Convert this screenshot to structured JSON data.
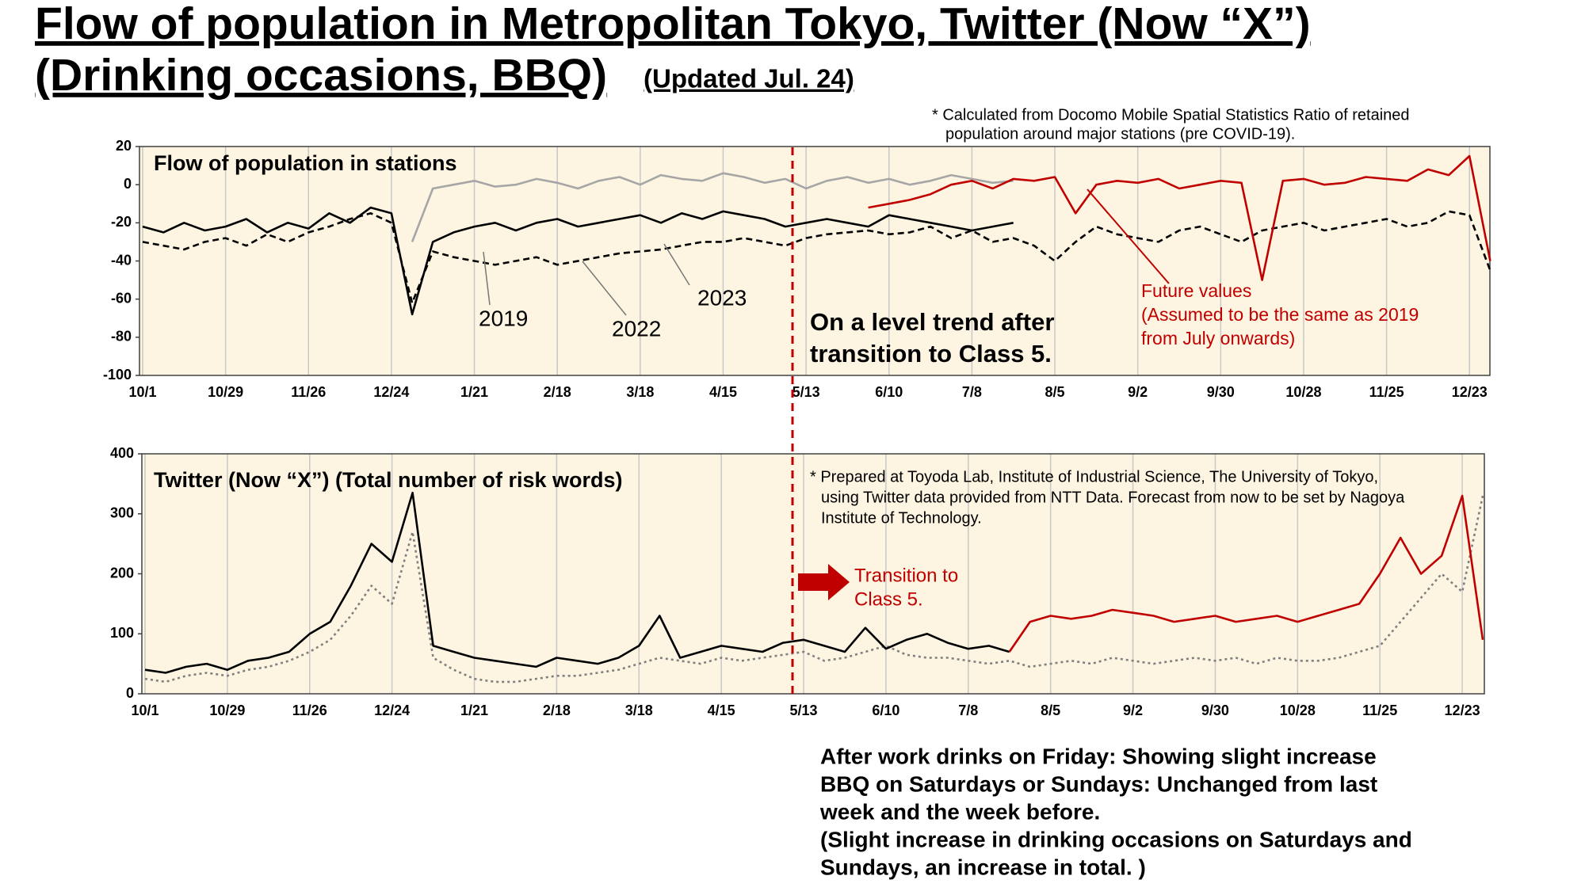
{
  "header": {
    "title_lines": [
      "Flow of population in Metropolitan Tokyo, Twitter (Now “X”)",
      "(Drinking occasions, BBQ)"
    ],
    "updated": "(Updated Jul. 24)",
    "note": [
      "* Calculated from Docomo Mobile Spatial Statistics   Ratio of retained",
      "population around major stations (pre COVID-19)."
    ]
  },
  "chart_data": [
    {
      "type": "line",
      "title": "Flow of population in stations",
      "annotation": [
        "On a level trend after",
        "transition to Class 5."
      ],
      "background": "#fdf5e1",
      "grid": true,
      "categories": [
        "10/1",
        null,
        null,
        null,
        "10/29",
        null,
        null,
        null,
        "11/26",
        null,
        null,
        null,
        "12/24",
        null,
        null,
        null,
        "1/21",
        null,
        null,
        null,
        "2/18",
        null,
        null,
        null,
        "3/18",
        null,
        null,
        null,
        "4/15",
        null,
        null,
        null,
        "5/13",
        null,
        null,
        null,
        "6/10",
        null,
        null,
        null,
        "7/8",
        null,
        null,
        null,
        "8/5",
        null,
        null,
        null,
        "9/2",
        null,
        null,
        null,
        "9/30",
        null,
        null,
        null,
        "10/28",
        null,
        null,
        null,
        "11/25",
        null,
        null,
        null,
        "12/23",
        null
      ],
      "ylim": [
        -100,
        20
      ],
      "yticks": [
        20,
        0,
        -20,
        -40,
        -60,
        -80,
        -100
      ],
      "series": [
        {
          "name": "2019",
          "color": "#a6a6a6",
          "values": [
            null,
            null,
            null,
            null,
            null,
            null,
            null,
            null,
            null,
            null,
            null,
            null,
            null,
            -30,
            -2,
            0,
            2,
            -1,
            0,
            3,
            1,
            -2,
            2,
            4,
            0,
            5,
            3,
            2,
            6,
            4,
            1,
            3,
            -2,
            2,
            4,
            1,
            3,
            0,
            2,
            5,
            3,
            1,
            2,
            null,
            null,
            null,
            null,
            null,
            null,
            null,
            null,
            null,
            null,
            null,
            null,
            null,
            null,
            null,
            null,
            null,
            null,
            null,
            null,
            null,
            null,
            null
          ]
        },
        {
          "name": "2022",
          "color": "#000000",
          "dash": "dashed",
          "values": [
            -30,
            -32,
            -34,
            -30,
            -28,
            -32,
            -26,
            -30,
            -25,
            -22,
            -18,
            -15,
            -20,
            -62,
            -35,
            -38,
            -40,
            -42,
            -40,
            -38,
            -42,
            -40,
            -38,
            -36,
            -35,
            -34,
            -32,
            -30,
            -30,
            -28,
            -30,
            -32,
            -28,
            -26,
            -25,
            -24,
            -26,
            -25,
            -22,
            -28,
            -24,
            -30,
            -28,
            -32,
            -40,
            -30,
            -22,
            -26,
            -28,
            -30,
            -24,
            -22,
            -26,
            -30,
            -24,
            -22,
            -20,
            -24,
            -22,
            -20,
            -18,
            -22,
            -20,
            -14,
            -16,
            -45
          ]
        },
        {
          "name": "2023",
          "color": "#000000",
          "values": [
            -22,
            -25,
            -20,
            -24,
            -22,
            -18,
            -25,
            -20,
            -23,
            -15,
            -20,
            -12,
            -15,
            -68,
            -30,
            -25,
            -22,
            -20,
            -24,
            -20,
            -18,
            -22,
            -20,
            -18,
            -16,
            -20,
            -15,
            -18,
            -14,
            -16,
            -18,
            -22,
            -20,
            -18,
            -20,
            -22,
            -16,
            -18,
            -20,
            -22,
            -24,
            -22,
            -20,
            null,
            null,
            null,
            null,
            null,
            null,
            null,
            null,
            null,
            null,
            null,
            null,
            null,
            null,
            null,
            null,
            null,
            null,
            null,
            null,
            null,
            null,
            null
          ]
        },
        {
          "name": "Future values",
          "note": [
            "(Assumed to be the same as 2019",
            "from July onwards)"
          ],
          "color": "#c00000",
          "values": [
            null,
            null,
            null,
            null,
            null,
            null,
            null,
            null,
            null,
            null,
            null,
            null,
            null,
            null,
            null,
            null,
            null,
            null,
            null,
            null,
            null,
            null,
            null,
            null,
            null,
            null,
            null,
            null,
            null,
            null,
            null,
            null,
            null,
            null,
            null,
            -12,
            -10,
            -8,
            -5,
            0,
            2,
            -2,
            3,
            2,
            4,
            -15,
            0,
            2,
            1,
            3,
            -2,
            0,
            2,
            1,
            -50,
            2,
            3,
            0,
            1,
            4,
            3,
            2,
            8,
            5,
            15,
            -40
          ]
        }
      ]
    },
    {
      "type": "line",
      "title": "Twitter (Now “X”) (Total number of risk words)",
      "note": [
        "* Prepared at Toyoda Lab, Institute of Industrial Science, The University of Tokyo,",
        "using Twitter data provided from NTT Data. Forecast from now to be set by Nagoya",
        "Institute of Technology."
      ],
      "annotation": [
        "Transition to",
        "Class 5."
      ],
      "background": "#fdf5e1",
      "grid": true,
      "categories": [
        "10/1",
        null,
        null,
        null,
        "10/29",
        null,
        null,
        null,
        "11/26",
        null,
        null,
        null,
        "12/24",
        null,
        null,
        null,
        "1/21",
        null,
        null,
        null,
        "2/18",
        null,
        null,
        null,
        "3/18",
        null,
        null,
        null,
        "4/15",
        null,
        null,
        null,
        "5/13",
        null,
        null,
        null,
        "6/10",
        null,
        null,
        null,
        "7/8",
        null,
        null,
        null,
        "8/5",
        null,
        null,
        null,
        "9/2",
        null,
        null,
        null,
        "9/30",
        null,
        null,
        null,
        "10/28",
        null,
        null,
        null,
        "11/25",
        null,
        null,
        null,
        "12/23",
        null
      ],
      "ylim": [
        0,
        400
      ],
      "yticks": [
        0,
        100,
        200,
        300,
        400
      ],
      "series": [
        {
          "color": "#808080",
          "dash": "dotted",
          "values": [
            25,
            20,
            30,
            35,
            30,
            40,
            45,
            55,
            70,
            90,
            130,
            180,
            150,
            270,
            60,
            40,
            25,
            20,
            20,
            25,
            30,
            30,
            35,
            40,
            50,
            60,
            55,
            50,
            60,
            55,
            60,
            65,
            70,
            55,
            60,
            70,
            80,
            65,
            60,
            60,
            55,
            50,
            55,
            45,
            50,
            55,
            50,
            60,
            55,
            50,
            55,
            60,
            55,
            60,
            50,
            60,
            55,
            55,
            60,
            70,
            80,
            120,
            160,
            200,
            170,
            330
          ]
        },
        {
          "color": "#000000",
          "values": [
            40,
            35,
            45,
            50,
            40,
            55,
            60,
            70,
            100,
            120,
            180,
            250,
            220,
            335,
            80,
            70,
            60,
            55,
            50,
            45,
            60,
            55,
            50,
            60,
            80,
            130,
            60,
            70,
            80,
            75,
            70,
            85,
            90,
            80,
            70,
            110,
            75,
            90,
            100,
            85,
            75,
            80,
            70,
            null,
            null,
            null,
            null,
            null,
            null,
            null,
            null,
            null,
            null,
            null,
            null,
            null,
            null,
            null,
            null,
            null,
            null,
            null,
            null,
            null,
            null,
            null
          ]
        },
        {
          "color": "#c00000",
          "values": [
            null,
            null,
            null,
            null,
            null,
            null,
            null,
            null,
            null,
            null,
            null,
            null,
            null,
            null,
            null,
            null,
            null,
            null,
            null,
            null,
            null,
            null,
            null,
            null,
            null,
            null,
            null,
            null,
            null,
            null,
            null,
            null,
            null,
            null,
            null,
            null,
            null,
            null,
            null,
            null,
            null,
            null,
            70,
            120,
            130,
            125,
            130,
            140,
            135,
            130,
            120,
            125,
            130,
            120,
            125,
            130,
            120,
            130,
            140,
            150,
            200,
            260,
            200,
            230,
            330,
            90
          ]
        }
      ]
    }
  ],
  "commentary": [
    "After work drinks on Friday: Showing slight increase",
    "BBQ on Saturdays or Sundays: Unchanged from last",
    "week and the week before.",
    "(Slight increase in drinking occasions on Saturdays and",
    "Sundays, an increase in total. )"
  ]
}
